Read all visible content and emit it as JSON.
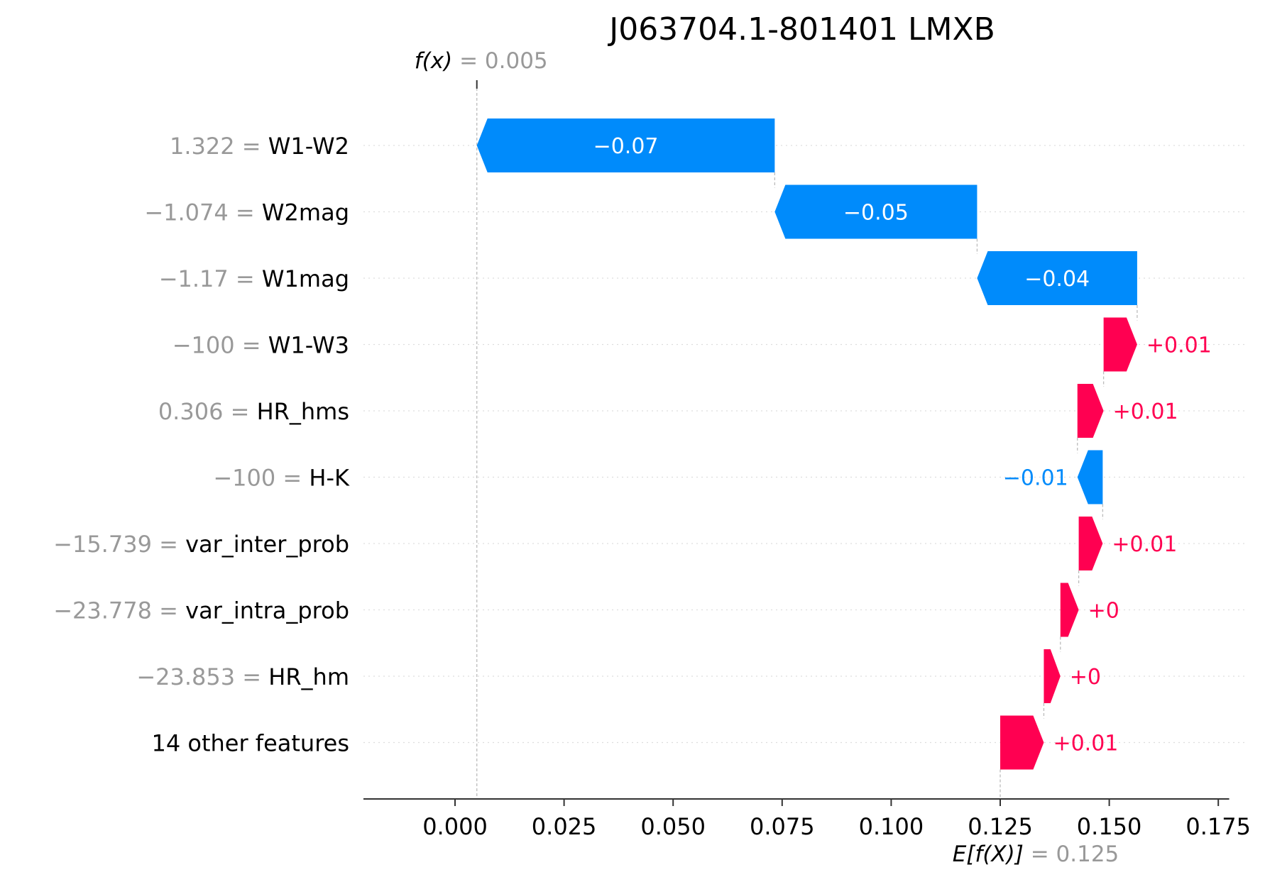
{
  "chart_data": {
    "type": "waterfall",
    "title": "J063704.1-801401 LMXB",
    "fx_label": "f(x)",
    "fx_value_text": "= 0.005",
    "fx_value": 0.005,
    "ex_label": "E[f(X)]",
    "ex_value_text": "= 0.125",
    "ex_value": 0.125,
    "xlim": [
      -0.021,
      0.1775
    ],
    "xticks": [
      0.0,
      0.025,
      0.05,
      0.075,
      0.1,
      0.125,
      0.15,
      0.175
    ],
    "xtick_labels": [
      "0.000",
      "0.025",
      "0.050",
      "0.075",
      "0.100",
      "0.125",
      "0.150",
      "0.175"
    ],
    "grid": "horizontal dotted",
    "colors": {
      "positive": "#ff0051",
      "negative": "#008bfb",
      "feature_value": "#999999",
      "guide": "#bbbbbb"
    },
    "features": [
      {
        "value_text": "1.322",
        "name": "W1-W2",
        "start": 0.0733,
        "end": 0.005,
        "label": "−0.07"
      },
      {
        "value_text": "−1.074",
        "name": "W2mag",
        "start": 0.1197,
        "end": 0.0733,
        "label": "−0.05"
      },
      {
        "value_text": "−1.17",
        "name": "W1mag",
        "start": 0.1564,
        "end": 0.1197,
        "label": "−0.04"
      },
      {
        "value_text": "−100",
        "name": "W1-W3",
        "start": 0.1487,
        "end": 0.1564,
        "label": "+0.01"
      },
      {
        "value_text": "0.306",
        "name": "HR_hms",
        "start": 0.1427,
        "end": 0.1487,
        "label": "+0.01"
      },
      {
        "value_text": "−100",
        "name": "H-K",
        "start": 0.1485,
        "end": 0.1427,
        "label": "−0.01"
      },
      {
        "value_text": "−15.739",
        "name": "var_inter_prob",
        "start": 0.143,
        "end": 0.1485,
        "label": "+0.01"
      },
      {
        "value_text": "−23.778",
        "name": "var_intra_prob",
        "start": 0.1388,
        "end": 0.143,
        "label": "+0"
      },
      {
        "value_text": "−23.853",
        "name": "HR_hm",
        "start": 0.135,
        "end": 0.1388,
        "label": "+0"
      },
      {
        "value_text": "",
        "name": "14 other features",
        "start": 0.125,
        "end": 0.135,
        "label": "+0.01"
      }
    ]
  }
}
